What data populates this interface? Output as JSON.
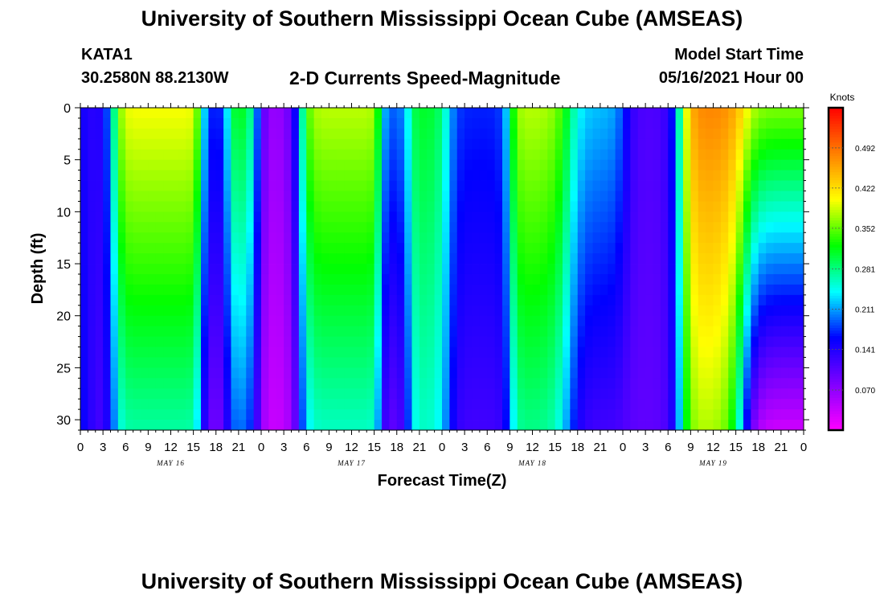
{
  "header": {
    "title": "University of Southern Mississippi Ocean Cube (AMSEAS)",
    "station": "KATA1",
    "coordinates": "30.2580N  88.2130W",
    "subtitle": "2-D Currents Speed-Magnitude",
    "model_start_label": "Model Start Time",
    "model_start_time": "05/16/2021 Hour 00"
  },
  "footer": {
    "title": "University of Southern Mississippi Ocean Cube (AMSEAS)"
  },
  "chart_data": {
    "type": "heatmap",
    "xlabel": "Forecast Time(Z)",
    "ylabel": "Depth (ft)",
    "xlim": [
      0,
      96
    ],
    "ylim": [
      0,
      31
    ],
    "y_inverted": true,
    "y_ticks": [
      0,
      5,
      10,
      15,
      20,
      25,
      30
    ],
    "x_tick_labels": [
      "0",
      "3",
      "6",
      "9",
      "12",
      "15",
      "18",
      "21",
      "0",
      "3",
      "6",
      "9",
      "12",
      "15",
      "18",
      "21",
      "0",
      "3",
      "6",
      "9",
      "12",
      "15",
      "18",
      "21",
      "0",
      "3",
      "6",
      "9",
      "12",
      "15",
      "18",
      "21",
      "0"
    ],
    "day_labels": [
      {
        "label": "MAY 16",
        "hour": 12
      },
      {
        "label": "MAY 17",
        "hour": 36
      },
      {
        "label": "MAY 18",
        "hour": 60
      },
      {
        "label": "MAY 19",
        "hour": 84
      }
    ],
    "colorbar": {
      "unit": "Knots",
      "min": 0.0,
      "max": 0.562,
      "tick_labels": [
        "0.070",
        "0.141",
        "0.211",
        "0.281",
        "0.352",
        "0.422",
        "0.492"
      ],
      "colors": [
        "#ff00ff",
        "#8000ff",
        "#0000ff",
        "#00ffff",
        "#00ff00",
        "#ffff00",
        "#ff8000",
        "#ff0000"
      ]
    },
    "features": [
      {
        "hour": 0.5,
        "top": 0.16,
        "bottom": 0.18,
        "width": 1.2
      },
      {
        "hour": 2,
        "top": 0.11,
        "bottom": 0.1,
        "width": 2
      },
      {
        "hour": 10,
        "top": 0.4,
        "bottom": 0.27,
        "width": 5
      },
      {
        "hour": 18,
        "top": 0.14,
        "bottom": 0.07,
        "width": 1.5
      },
      {
        "hour": 21.5,
        "top": 0.32,
        "bottom": 0.2,
        "width": 2
      },
      {
        "hour": 26,
        "top": 0.06,
        "bottom": 0.03,
        "width": 2.5
      },
      {
        "hour": 34,
        "top": 0.38,
        "bottom": 0.26,
        "width": 4
      },
      {
        "hour": 42,
        "top": 0.18,
        "bottom": 0.09,
        "width": 1.5
      },
      {
        "hour": 46,
        "top": 0.31,
        "bottom": 0.26,
        "width": 2.5
      },
      {
        "hour": 52,
        "top": 0.17,
        "bottom": 0.12,
        "width": 3
      },
      {
        "hour": 62,
        "top": 0.38,
        "bottom": 0.28,
        "width": 3
      },
      {
        "hour": 68,
        "top": 0.22,
        "bottom": 0.12,
        "width": 3.5
      },
      {
        "hour": 76,
        "top": 0.11,
        "bottom": 0.1,
        "width": 3
      },
      {
        "hour": 84,
        "top": 0.48,
        "bottom": 0.38,
        "width": 3.5
      },
      {
        "hour": 93,
        "top": 0.36,
        "bottom": 0.03,
        "width": 4.5
      }
    ]
  }
}
